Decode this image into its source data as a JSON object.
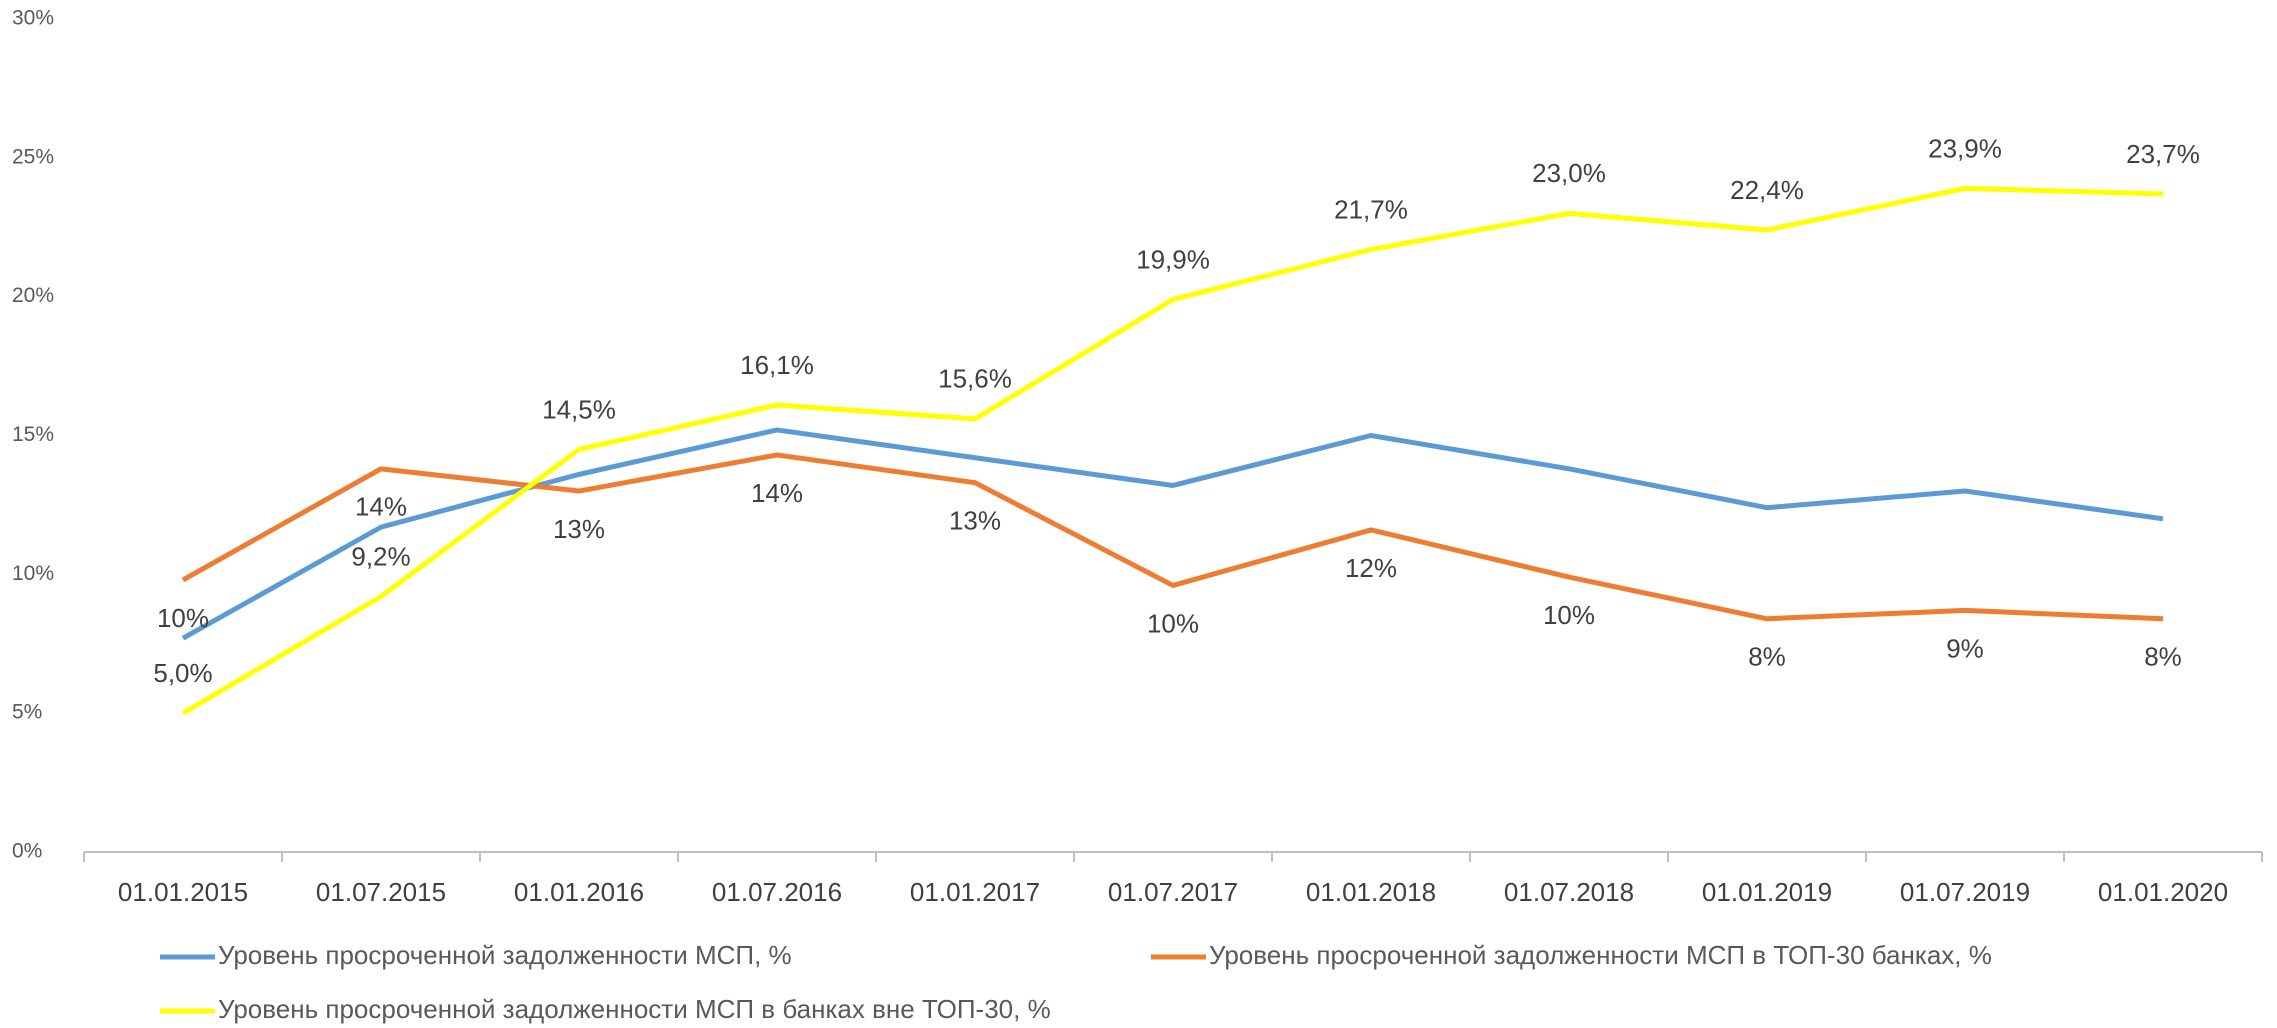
{
  "chart_data": {
    "type": "line",
    "categories": [
      "01.01.2015",
      "01.07.2015",
      "01.01.2016",
      "01.07.2016",
      "01.01.2017",
      "01.07.2017",
      "01.01.2018",
      "01.07.2018",
      "01.01.2019",
      "01.07.2019",
      "01.01.2020"
    ],
    "series": [
      {
        "name": "Уровень просроченной задолженности МСП, %",
        "color": "#5b9bd5",
        "values": [
          7.7,
          11.7,
          13.6,
          15.2,
          14.2,
          13.2,
          15.0,
          13.8,
          12.4,
          13.0,
          12.0
        ]
      },
      {
        "name": "Уровень просроченной задолженности МСП в ТОП-30 банках, %",
        "color": "#ed7d31",
        "values": [
          9.8,
          13.8,
          13.0,
          14.3,
          13.3,
          9.6,
          11.6,
          9.9,
          8.4,
          8.7,
          8.4
        ],
        "value_labels": [
          "10%",
          "14%",
          "13%",
          "14%",
          "13%",
          "10%",
          "12%",
          "10%",
          "8%",
          "9%",
          "8%"
        ]
      },
      {
        "name": "Уровень просроченной задолженности МСП в банках вне ТОП-30, %",
        "color": "#ffff00",
        "values": [
          5.0,
          9.2,
          14.5,
          16.1,
          15.6,
          19.9,
          21.7,
          23.0,
          22.4,
          23.9,
          23.7
        ],
        "value_labels": [
          "5,0%",
          "9,2%",
          "14,5%",
          "16,1%",
          "15,6%",
          "19,9%",
          "21,7%",
          "23,0%",
          "22,4%",
          "23,9%",
          "23,7%"
        ]
      }
    ],
    "ylim": [
      0,
      30
    ],
    "yticks": [
      {
        "value": 0,
        "label": "0%"
      },
      {
        "value": 5,
        "label": "5%"
      },
      {
        "value": 10,
        "label": "10%"
      },
      {
        "value": 15,
        "label": "15%"
      },
      {
        "value": 20,
        "label": "20%"
      },
      {
        "value": 25,
        "label": "25%"
      },
      {
        "value": 30,
        "label": "30%"
      }
    ],
    "grid": false
  }
}
